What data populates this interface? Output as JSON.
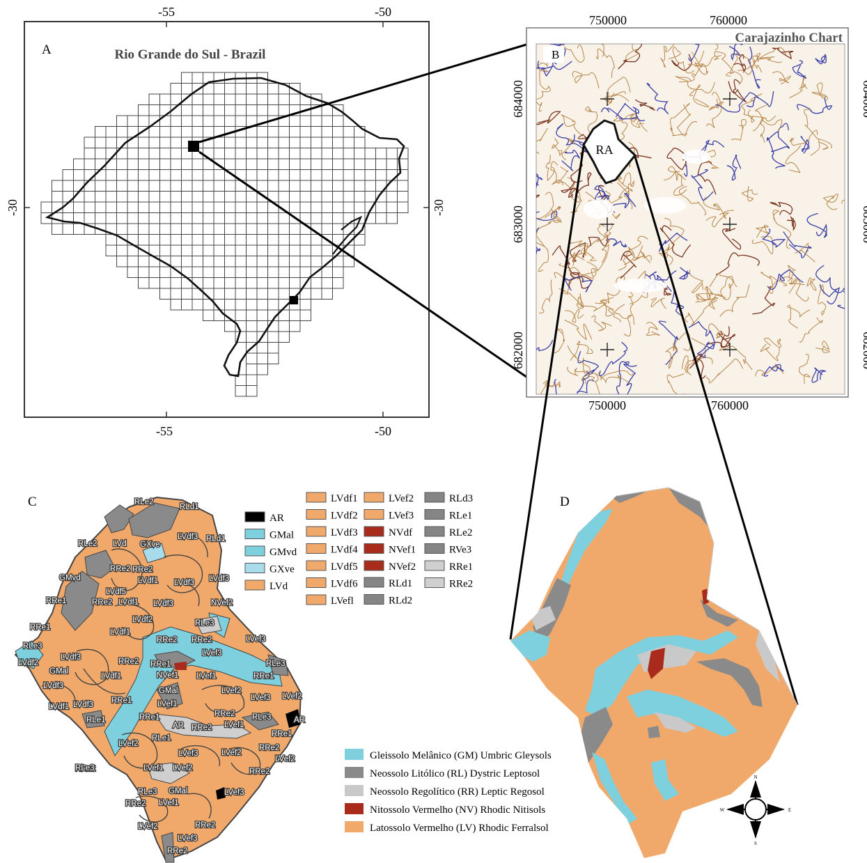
{
  "panel_a": {
    "letter": "A",
    "title": "Rio Grande do Sul - Brazil",
    "lon_top": [
      "-55",
      "-50"
    ],
    "lon_bottom": [
      "-55",
      "-50"
    ],
    "lat_left": "-30",
    "lat_right": "-30"
  },
  "panel_b": {
    "letter": "B",
    "title": "Carajazinho Chart",
    "x_top": [
      "750000",
      "760000"
    ],
    "x_bottom": [
      "750000",
      "760000"
    ],
    "y_left": [
      "684000",
      "683000",
      "682000"
    ],
    "y_right": [
      "684000",
      "683000",
      "682000"
    ],
    "area_label": "RA",
    "colors": {
      "contour": "#b8864a",
      "contour_dark": "#7a3520",
      "stream": "#3a3fa8"
    }
  },
  "panel_c": {
    "letter": "C",
    "colors": {
      "ferralsol": "#f0a96b",
      "gleysol": "#7fd0de",
      "leptosol": "#8a8a8a",
      "regosol": "#c9c9c9",
      "nitisol": "#a82b1c",
      "ar": "#000000"
    },
    "map_labels": [
      {
        "t": "RLe2"
      },
      {
        "t": "RLd1"
      },
      {
        "t": "RLe2"
      },
      {
        "t": "LVd"
      },
      {
        "t": "GXve"
      },
      {
        "t": "LVdf3"
      },
      {
        "t": "RLd1"
      },
      {
        "t": "RRe2"
      },
      {
        "t": "RRe2"
      },
      {
        "t": "LVdf1"
      },
      {
        "t": "LVdf3"
      },
      {
        "t": "LVdf3"
      },
      {
        "t": "GMvd"
      },
      {
        "t": "LVdf5"
      },
      {
        "t": "RRe1"
      },
      {
        "t": "RRe2"
      },
      {
        "t": "LVdf1"
      },
      {
        "t": "LVdf3"
      },
      {
        "t": "NVef2"
      },
      {
        "t": "LVdf2"
      },
      {
        "t": "RRe1"
      },
      {
        "t": "RLe3"
      },
      {
        "t": "LVdf1"
      },
      {
        "t": "RRe2"
      },
      {
        "t": "RRe2"
      },
      {
        "t": "LVef3"
      },
      {
        "t": "RLe3"
      },
      {
        "t": "LVef3"
      },
      {
        "t": "LVdf2"
      },
      {
        "t": "LVdf3"
      },
      {
        "t": "RRe2"
      },
      {
        "t": "RRe1"
      },
      {
        "t": "RLe3"
      },
      {
        "t": "GMal"
      },
      {
        "t": "NVef1"
      },
      {
        "t": "LVef1"
      },
      {
        "t": "RRe1"
      },
      {
        "t": "LVdf3"
      },
      {
        "t": "LVdf1"
      },
      {
        "t": "GMal"
      },
      {
        "t": "LVef2"
      },
      {
        "t": "LVef3"
      },
      {
        "t": "LVef2"
      },
      {
        "t": "LVdf1"
      },
      {
        "t": "LVdf3"
      },
      {
        "t": "RRe1"
      },
      {
        "t": "LVef1"
      },
      {
        "t": "RRe2"
      },
      {
        "t": "RLe3"
      },
      {
        "t": "AR"
      },
      {
        "t": "RLe1"
      },
      {
        "t": "RRe1"
      },
      {
        "t": "AR"
      },
      {
        "t": "RRe2"
      },
      {
        "t": "LVef1"
      },
      {
        "t": "RRe1"
      },
      {
        "t": "RLe1"
      },
      {
        "t": "LVef2"
      },
      {
        "t": "RRe2"
      },
      {
        "t": "LVef3"
      },
      {
        "t": "LVef2"
      },
      {
        "t": "RRe2"
      },
      {
        "t": "LVef2"
      },
      {
        "t": "RLe3"
      },
      {
        "t": "LVef1"
      },
      {
        "t": "LVef2"
      },
      {
        "t": "RRe2"
      },
      {
        "t": "RLe3"
      },
      {
        "t": "GMal"
      },
      {
        "t": "LVef3"
      },
      {
        "t": "RRe2"
      },
      {
        "t": "LVef1"
      },
      {
        "t": "LVef2"
      },
      {
        "t": "RRe2"
      },
      {
        "t": "LVef3"
      },
      {
        "t": "RRe2"
      }
    ],
    "legend": [
      {
        "label": "AR",
        "color": "#000000"
      },
      {
        "label": "GMal",
        "color": "#7fd0de"
      },
      {
        "label": "GMvd",
        "color": "#7fd0de"
      },
      {
        "label": "GXve",
        "color": "#a8dcec"
      },
      {
        "label": "LVd",
        "color": "#f0a96b"
      },
      {
        "label": "LVdf1",
        "color": "#f0a96b"
      },
      {
        "label": "LVdf2",
        "color": "#f0a96b"
      },
      {
        "label": "LVdf3",
        "color": "#f0a96b"
      },
      {
        "label": "LVdf4",
        "color": "#f0a96b"
      },
      {
        "label": "LVdf5",
        "color": "#f0a96b"
      },
      {
        "label": "LVdf6",
        "color": "#f0a96b"
      },
      {
        "label": "LVefl",
        "color": "#f0a96b"
      },
      {
        "label": "LVef2",
        "color": "#f0a96b"
      },
      {
        "label": "LVef3",
        "color": "#f0a96b"
      },
      {
        "label": "NVdf",
        "color": "#a82b1c"
      },
      {
        "label": "NVef1",
        "color": "#a82b1c"
      },
      {
        "label": "NVef2",
        "color": "#a82b1c"
      },
      {
        "label": "RLd1",
        "color": "#858585"
      },
      {
        "label": "RLd2",
        "color": "#858585"
      },
      {
        "label": "RLd3",
        "color": "#858585"
      },
      {
        "label": "RLe1",
        "color": "#858585"
      },
      {
        "label": "RLe2",
        "color": "#858585"
      },
      {
        "label": "RVe3",
        "color": "#858585"
      },
      {
        "label": "RRe1",
        "color": "#cfcfcf"
      },
      {
        "label": "RRe2",
        "color": "#cfcfcf"
      }
    ]
  },
  "panel_d": {
    "letter": "D",
    "legend": [
      {
        "label": "Gleissolo Melânico (GM) Umbric Gleysols",
        "color": "#7fd0de"
      },
      {
        "label": "Neossolo Litólico (RL) Dystric Leptosol",
        "color": "#8a8a8a"
      },
      {
        "label": "Neossolo Regolítico (RR) Leptic Regosol",
        "color": "#c9c9c9"
      },
      {
        "label": "Nitossolo Vermelho (NV) Rhodic Nitisols",
        "color": "#a82b1c"
      },
      {
        "label": "Latossolo Vermelho (LV) Rhodic Ferralsol",
        "color": "#f0a96b"
      }
    ],
    "compass": [
      "N",
      "S",
      "E",
      "W"
    ]
  }
}
